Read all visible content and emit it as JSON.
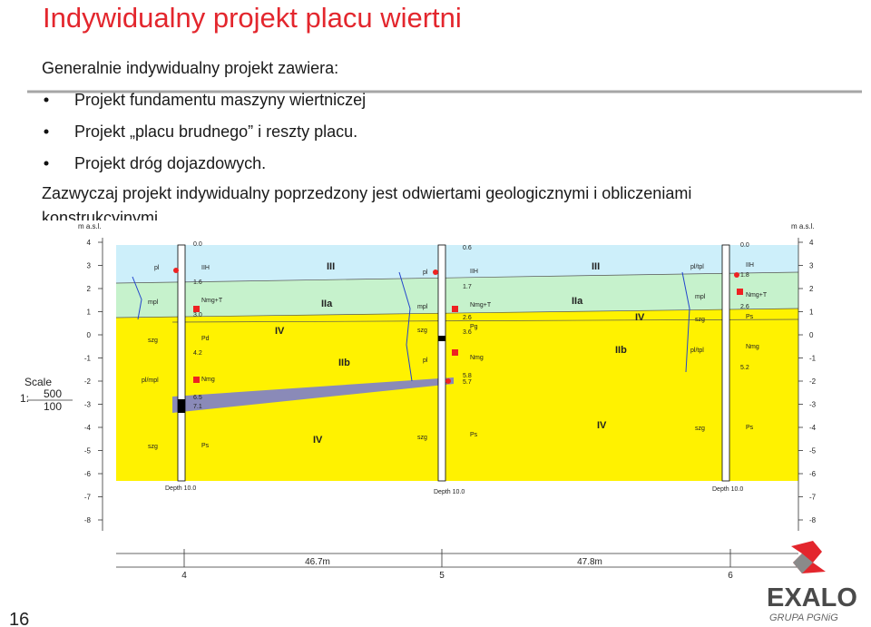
{
  "header": {
    "title": "Indywidualny projekt placu wiertni"
  },
  "content": {
    "intro": "Generalnie indywidualny projekt zawiera:",
    "bullets": [
      "Projekt fundamentu maszyny wiertniczej",
      "Projekt „placu brudnego” i reszty placu.",
      "Projekt dróg dojazdowych."
    ],
    "paragraph": [
      "Zazwyczaj projekt indywidualny poprzedzony jest odwiertami geologicznymi i obliczeniami",
      "konstrukcyjnymi."
    ]
  },
  "figure": {
    "axis_label": "m a.s.l.",
    "elevation_ticks": [
      4,
      3,
      2,
      1,
      0,
      -1,
      -2,
      -3,
      -4,
      -5,
      -6,
      -7,
      -8
    ],
    "scale": {
      "label": "Scale",
      "prefix": "1:",
      "numerator": "500",
      "denominator": "100"
    },
    "layers": [
      "III",
      "III",
      "IIa",
      "IIa",
      "IV",
      "IV",
      "IIb",
      "IIb",
      "IV",
      "IV"
    ],
    "labels": [
      "0.0",
      "IIH",
      "1.6",
      "Nmg+T",
      "3.0",
      "Pd",
      "4.2",
      "Nmg",
      "6.5",
      "7.1",
      "Ps",
      "Depth 10.0",
      "pl",
      "mpl",
      "szg",
      "pl/mpl",
      "szg",
      "0.6",
      "pl",
      "IIH",
      "1.7",
      "mpl",
      "Nmg+T",
      "2.6",
      "szg",
      "Pg",
      "3.6",
      "pl",
      "Nmg",
      "5.8",
      "5.7",
      "szg",
      "Ps",
      "Depth 10.0",
      "0.0",
      "pl/tpl",
      "IIH",
      "1.8",
      "mpl",
      "Nmg+T",
      "2.6",
      "szg",
      "Ps",
      "pl/tpl",
      "Nmg",
      "5.2",
      "szg",
      "Ps",
      "Depth 10.0"
    ],
    "distances": [
      "46.7m",
      "47.8m"
    ],
    "boreholes": [
      "4",
      "5",
      "6"
    ]
  },
  "logo": {
    "name": "EXALO",
    "group": "GRUPA PGNiG"
  },
  "page_number": "16"
}
